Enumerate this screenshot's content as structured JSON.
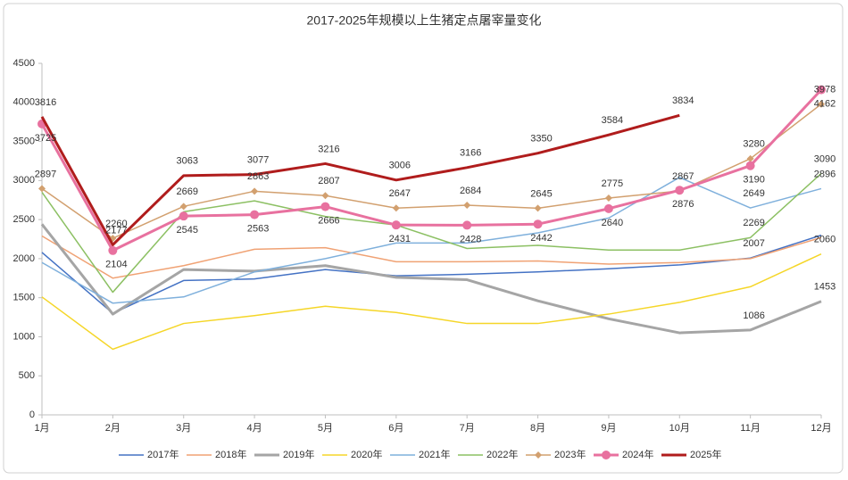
{
  "chart_data": {
    "type": "line",
    "title": "2017-2025年规模以上生猪定点屠宰量变化",
    "categories": [
      "1月",
      "2月",
      "3月",
      "4月",
      "5月",
      "6月",
      "7月",
      "8月",
      "9月",
      "10月",
      "11月",
      "12月"
    ],
    "ylim": [
      0,
      4500
    ],
    "yticks": [
      0,
      500,
      1000,
      1500,
      2000,
      2500,
      3000,
      3500,
      4000,
      4500
    ],
    "grid": false,
    "legend": "bottom",
    "series": [
      {
        "name": "2017年",
        "color": "#4472c4",
        "width": 1.5,
        "values": [
          2080,
          1300,
          1720,
          1740,
          1860,
          1780,
          1800,
          1830,
          1870,
          1920,
          2007,
          2300
        ],
        "label_points": [
          10
        ],
        "label_position": "above"
      },
      {
        "name": "2018年",
        "color": "#f0a274",
        "width": 1.5,
        "values": [
          2290,
          1750,
          1910,
          2120,
          2140,
          1960,
          1960,
          1970,
          1930,
          1950,
          2000,
          2270
        ],
        "label_points": [],
        "label_position": "above"
      },
      {
        "name": "2019年",
        "color": "#a5a5a5",
        "width": 3,
        "values": [
          2440,
          1290,
          1860,
          1840,
          1910,
          1760,
          1730,
          1460,
          1230,
          1050,
          1086,
          1453
        ],
        "label_points": [
          10,
          11
        ],
        "label_position": "above"
      },
      {
        "name": "2020年",
        "color": "#f5d628",
        "width": 1.5,
        "values": [
          1510,
          840,
          1170,
          1270,
          1390,
          1310,
          1170,
          1170,
          1290,
          1440,
          1640,
          2060
        ],
        "label_points": [
          11
        ],
        "label_position": "above"
      },
      {
        "name": "2021年",
        "color": "#7fb0dc",
        "width": 1.5,
        "values": [
          1950,
          1430,
          1510,
          1830,
          2000,
          2200,
          2200,
          2330,
          2520,
          3040,
          2649,
          2896
        ],
        "label_points": [
          10,
          11
        ],
        "label_position": "above"
      },
      {
        "name": "2022年",
        "color": "#8cc063",
        "width": 1.5,
        "values": [
          2850,
          1570,
          2600,
          2740,
          2540,
          2430,
          2130,
          2170,
          2110,
          2110,
          2269,
          3090
        ],
        "label_points": [
          10,
          11
        ],
        "label_position": "above"
      },
      {
        "name": "2023年",
        "color": "#d2a06f",
        "width": 1.5,
        "marker": "diamond",
        "values": [
          2897,
          2260,
          2669,
          2863,
          2807,
          2647,
          2684,
          2645,
          2775,
          2867,
          3280,
          3978
        ],
        "label_points": [
          0,
          1,
          2,
          3,
          4,
          5,
          6,
          7,
          8,
          9,
          10,
          11
        ],
        "label_position": "above"
      },
      {
        "name": "2024年",
        "color": "#e8719f",
        "width": 3,
        "marker": "circle",
        "values": [
          3725,
          2104,
          2545,
          2563,
          2666,
          2431,
          2428,
          2442,
          2640,
          2876,
          3190,
          4162
        ],
        "label_points": [
          0,
          1,
          2,
          3,
          4,
          5,
          6,
          7,
          8,
          9,
          10,
          11
        ],
        "label_position": "below"
      },
      {
        "name": "2025年",
        "color": "#b01c1c",
        "width": 3,
        "values": [
          3816,
          2177,
          3063,
          3077,
          3216,
          3006,
          3166,
          3350,
          3584,
          3834,
          null,
          null
        ],
        "label_points": [
          0,
          1,
          2,
          3,
          4,
          5,
          6,
          7,
          8,
          9
        ],
        "label_position": "above"
      }
    ]
  }
}
